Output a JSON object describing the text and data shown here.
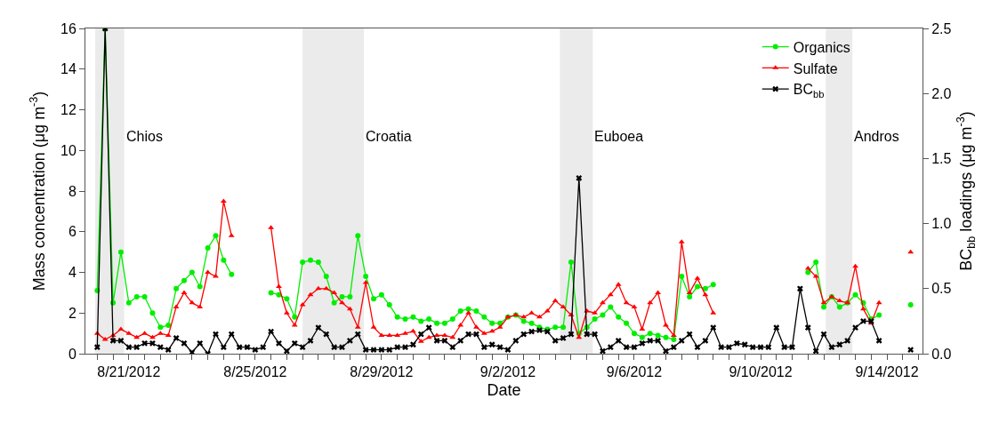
{
  "chart_data": {
    "type": "line",
    "xlabel": "Date",
    "ylabel": "Mass concentration (μg m$^{-3}$)",
    "y2label": "BC$_{bb}$ loadings (μg m$^{-3}$)",
    "x": [
      "2012-08-20T00:00",
      "2012-08-20T06:00",
      "2012-08-20T12:00",
      "2012-08-20T18:00",
      "2012-08-21T00:00",
      "2012-08-21T06:00",
      "2012-08-21T12:00",
      "2012-08-21T18:00",
      "2012-08-22T00:00",
      "2012-08-22T06:00",
      "2012-08-22T12:00",
      "2012-08-22T18:00",
      "2012-08-23T00:00",
      "2012-08-23T06:00",
      "2012-08-23T12:00",
      "2012-08-23T18:00",
      "2012-08-24T00:00",
      "2012-08-24T06:00",
      "2012-08-24T12:00",
      "2012-08-24T18:00",
      "2012-08-25T00:00",
      "2012-08-25T06:00",
      "2012-08-25T12:00",
      "2012-08-25T18:00",
      "2012-08-26T00:00",
      "2012-08-26T06:00",
      "2012-08-26T12:00",
      "2012-08-26T18:00",
      "2012-08-27T00:00",
      "2012-08-27T06:00",
      "2012-08-27T12:00",
      "2012-08-27T18:00",
      "2012-08-28T00:00",
      "2012-08-28T06:00",
      "2012-08-28T12:00",
      "2012-08-28T18:00",
      "2012-08-29T00:00",
      "2012-08-29T06:00",
      "2012-08-29T12:00",
      "2012-08-29T18:00",
      "2012-08-30T00:00",
      "2012-08-30T06:00",
      "2012-08-30T12:00",
      "2012-08-30T18:00",
      "2012-08-31T00:00",
      "2012-08-31T06:00",
      "2012-08-31T12:00",
      "2012-08-31T18:00",
      "2012-09-01T00:00",
      "2012-09-01T06:00",
      "2012-09-01T12:00",
      "2012-09-01T18:00",
      "2012-09-02T00:00",
      "2012-09-02T06:00",
      "2012-09-02T12:00",
      "2012-09-02T18:00",
      "2012-09-03T00:00",
      "2012-09-03T06:00",
      "2012-09-03T12:00",
      "2012-09-03T18:00",
      "2012-09-04T00:00",
      "2012-09-04T06:00",
      "2012-09-04T12:00",
      "2012-09-04T18:00",
      "2012-09-05T00:00",
      "2012-09-05T06:00",
      "2012-09-05T12:00",
      "2012-09-05T18:00",
      "2012-09-06T00:00",
      "2012-09-06T06:00",
      "2012-09-06T12:00",
      "2012-09-06T18:00",
      "2012-09-07T00:00",
      "2012-09-07T06:00",
      "2012-09-07T12:00",
      "2012-09-07T18:00",
      "2012-09-08T00:00",
      "2012-09-08T06:00",
      "2012-09-08T12:00",
      "2012-09-08T18:00",
      "2012-09-09T00:00",
      "2012-09-09T06:00",
      "2012-09-09T12:00",
      "2012-09-09T18:00",
      "2012-09-10T00:00",
      "2012-09-10T06:00",
      "2012-09-10T12:00",
      "2012-09-10T18:00",
      "2012-09-11T00:00",
      "2012-09-11T06:00",
      "2012-09-11T12:00",
      "2012-09-11T18:00",
      "2012-09-12T00:00",
      "2012-09-12T06:00",
      "2012-09-12T12:00",
      "2012-09-12T18:00",
      "2012-09-13T00:00",
      "2012-09-13T06:00",
      "2012-09-13T12:00",
      "2012-09-13T18:00",
      "2012-09-14T00:00",
      "2012-09-14T06:00",
      "2012-09-14T12:00",
      "2012-09-14T18:00"
    ],
    "series": [
      {
        "name": "Organics",
        "color": "#00ee00",
        "marker": "circle",
        "values": [
          3.1,
          16,
          2.5,
          5.0,
          2.5,
          2.8,
          2.8,
          2.0,
          1.3,
          1.4,
          3.2,
          3.6,
          4.0,
          3.3,
          5.2,
          5.8,
          4.6,
          3.9,
          null,
          null,
          null,
          null,
          3.0,
          2.9,
          2.7,
          1.8,
          4.5,
          4.6,
          4.5,
          3.8,
          2.5,
          2.8,
          2.8,
          5.8,
          3.8,
          2.7,
          2.9,
          2.4,
          1.8,
          1.7,
          1.8,
          1.6,
          1.7,
          1.5,
          1.5,
          1.7,
          2.1,
          2.2,
          2.1,
          1.8,
          1.5,
          1.5,
          1.8,
          1.9,
          1.6,
          1.5,
          1.3,
          1.2,
          1.3,
          1.3,
          4.5,
          1.0,
          1.3,
          1.7,
          1.9,
          2.3,
          1.8,
          1.5,
          1.0,
          0.8,
          1.0,
          0.9,
          0.8,
          0.7,
          3.8,
          2.8,
          3.3,
          3.2,
          3.4,
          null,
          null,
          null,
          null,
          null,
          null,
          null,
          null,
          null,
          null,
          null,
          4.0,
          4.5,
          2.3,
          2.8,
          2.3,
          2.5,
          2.9,
          2.5,
          1.7,
          1.9,
          null,
          null,
          null,
          2.4
        ]
      },
      {
        "name": "Sulfate",
        "color": "#ff0000",
        "marker": "triangle",
        "values": [
          1.0,
          0.7,
          0.9,
          1.2,
          1.0,
          0.8,
          1.0,
          0.8,
          1.0,
          0.9,
          2.3,
          3.0,
          2.5,
          2.3,
          4.0,
          3.8,
          7.5,
          5.8,
          null,
          null,
          null,
          null,
          6.2,
          3.3,
          2.0,
          1.4,
          2.4,
          2.9,
          3.2,
          3.2,
          3.0,
          2.5,
          2.2,
          1.3,
          3.5,
          1.3,
          0.9,
          0.9,
          0.9,
          1.0,
          1.1,
          0.6,
          0.8,
          0.9,
          0.9,
          0.8,
          1.4,
          2.0,
          1.3,
          1.0,
          1.1,
          1.3,
          1.8,
          1.9,
          1.8,
          2.0,
          1.8,
          2.1,
          2.6,
          2.3,
          1.9,
          0.8,
          2.1,
          2.0,
          2.5,
          2.9,
          3.4,
          2.5,
          2.3,
          1.2,
          2.5,
          3.0,
          1.4,
          0.9,
          5.5,
          3.0,
          3.7,
          2.9,
          2.0,
          null,
          null,
          null,
          null,
          null,
          null,
          null,
          null,
          null,
          null,
          null,
          4.2,
          3.8,
          2.5,
          2.8,
          2.6,
          2.5,
          4.3,
          2.2,
          1.5,
          2.5,
          null,
          null,
          null,
          5.0
        ]
      },
      {
        "name": "BC$_{bb}$",
        "color": "#000000",
        "marker": "cross",
        "axis": "y2",
        "values": [
          0.05,
          2.5,
          0.1,
          0.1,
          0.05,
          0.05,
          0.08,
          0.08,
          0.05,
          0.03,
          0.12,
          0.08,
          0.01,
          0.08,
          0.0,
          0.15,
          0.05,
          0.15,
          0.05,
          0.05,
          0.03,
          0.05,
          0.17,
          0.08,
          0.02,
          0.08,
          0.05,
          0.1,
          0.2,
          0.15,
          0.05,
          0.05,
          0.1,
          0.15,
          0.03,
          0.03,
          0.03,
          0.03,
          0.05,
          0.05,
          0.07,
          0.15,
          0.2,
          0.1,
          0.1,
          0.05,
          0.1,
          0.15,
          0.15,
          0.05,
          0.07,
          0.05,
          0.03,
          0.1,
          0.15,
          0.17,
          0.18,
          0.17,
          0.1,
          0.12,
          0.15,
          1.35,
          0.15,
          0.15,
          0.02,
          0.05,
          0.1,
          0.05,
          0.05,
          0.08,
          0.1,
          0.1,
          0.02,
          0.05,
          0.1,
          0.15,
          0.05,
          0.1,
          0.2,
          0.05,
          0.05,
          0.08,
          0.07,
          0.05,
          0.05,
          0.05,
          0.2,
          0.05,
          0.05,
          0.5,
          0.2,
          0.02,
          0.15,
          0.05,
          0.07,
          0.1,
          0.2,
          0.25,
          0.25,
          0.1,
          null,
          null,
          null,
          0.03
        ]
      }
    ],
    "xlim": [
      "2012-08-19T15:00",
      "2012-09-15T03:00"
    ],
    "xticks": [
      {
        "value": "2012-08-20T00:00",
        "label": null
      },
      {
        "value": "2012-08-20T12:00",
        "label": null
      },
      {
        "value": "2012-08-21T00:00",
        "label": "8/21/2012"
      },
      {
        "value": "2012-08-21T12:00",
        "label": null
      },
      {
        "value": "2012-08-22T00:00",
        "label": null
      },
      {
        "value": "2012-08-22T12:00",
        "label": null
      },
      {
        "value": "2012-08-23T00:00",
        "label": null
      },
      {
        "value": "2012-08-23T12:00",
        "label": null
      },
      {
        "value": "2012-08-24T00:00",
        "label": null
      },
      {
        "value": "2012-08-24T12:00",
        "label": null
      },
      {
        "value": "2012-08-25T00:00",
        "label": "8/25/2012"
      },
      {
        "value": "2012-08-25T12:00",
        "label": null
      },
      {
        "value": "2012-08-26T00:00",
        "label": null
      },
      {
        "value": "2012-08-26T12:00",
        "label": null
      },
      {
        "value": "2012-08-27T00:00",
        "label": null
      },
      {
        "value": "2012-08-27T12:00",
        "label": null
      },
      {
        "value": "2012-08-28T00:00",
        "label": null
      },
      {
        "value": "2012-08-28T12:00",
        "label": null
      },
      {
        "value": "2012-08-29T00:00",
        "label": "8/29/2012"
      },
      {
        "value": "2012-08-29T12:00",
        "label": null
      },
      {
        "value": "2012-08-30T00:00",
        "label": null
      },
      {
        "value": "2012-08-30T12:00",
        "label": null
      },
      {
        "value": "2012-08-31T00:00",
        "label": null
      },
      {
        "value": "2012-08-31T12:00",
        "label": null
      },
      {
        "value": "2012-09-01T00:00",
        "label": null
      },
      {
        "value": "2012-09-01T12:00",
        "label": null
      },
      {
        "value": "2012-09-02T00:00",
        "label": "9/2/2012"
      },
      {
        "value": "2012-09-02T12:00",
        "label": null
      },
      {
        "value": "2012-09-03T00:00",
        "label": null
      },
      {
        "value": "2012-09-03T12:00",
        "label": null
      },
      {
        "value": "2012-09-04T00:00",
        "label": null
      },
      {
        "value": "2012-09-04T12:00",
        "label": null
      },
      {
        "value": "2012-09-05T00:00",
        "label": null
      },
      {
        "value": "2012-09-05T12:00",
        "label": null
      },
      {
        "value": "2012-09-06T00:00",
        "label": "9/6/2012"
      },
      {
        "value": "2012-09-06T12:00",
        "label": null
      },
      {
        "value": "2012-09-07T00:00",
        "label": null
      },
      {
        "value": "2012-09-07T12:00",
        "label": null
      },
      {
        "value": "2012-09-08T00:00",
        "label": null
      },
      {
        "value": "2012-09-08T12:00",
        "label": null
      },
      {
        "value": "2012-09-09T00:00",
        "label": null
      },
      {
        "value": "2012-09-09T12:00",
        "label": null
      },
      {
        "value": "2012-09-10T00:00",
        "label": "9/10/2012"
      },
      {
        "value": "2012-09-10T12:00",
        "label": null
      },
      {
        "value": "2012-09-11T00:00",
        "label": null
      },
      {
        "value": "2012-09-11T12:00",
        "label": null
      },
      {
        "value": "2012-09-12T00:00",
        "label": null
      },
      {
        "value": "2012-09-12T12:00",
        "label": null
      },
      {
        "value": "2012-09-13T00:00",
        "label": null
      },
      {
        "value": "2012-09-13T12:00",
        "label": null
      },
      {
        "value": "2012-09-14T00:00",
        "label": "9/14/2012"
      },
      {
        "value": "2012-09-14T12:00",
        "label": null
      },
      {
        "value": "2012-09-15T00:00",
        "label": null
      }
    ],
    "ylim": [
      0,
      16
    ],
    "yticks": [
      0,
      2,
      4,
      6,
      8,
      10,
      12,
      14,
      16
    ],
    "y2lim": [
      0,
      2.5
    ],
    "y2ticks": [
      {
        "value": 0,
        "label": "0.0"
      },
      {
        "value": 0.5,
        "label": "0.5"
      },
      {
        "value": 1,
        "label": "1.0"
      },
      {
        "value": 1.5,
        "label": "1.5"
      },
      {
        "value": 2,
        "label": "2.0"
      },
      {
        "value": 2.5,
        "label": "2.5"
      }
    ],
    "bands": [
      {
        "axis": "x",
        "from": "2012-08-19T22:30",
        "to": "2012-08-20T20:30",
        "color": "#ebebeb"
      },
      {
        "axis": "x",
        "from": "2012-08-26T12:00",
        "to": "2012-08-28T10:30",
        "color": "#ebebeb"
      },
      {
        "axis": "x",
        "from": "2012-09-03T15:30",
        "to": "2012-09-04T16:30",
        "color": "#ebebeb"
      },
      {
        "axis": "x",
        "from": "2012-09-12T01:30",
        "to": "2012-09-12T21:45",
        "color": "#ebebeb"
      }
    ],
    "annotations": [
      "Chios",
      "Croatia",
      "Euboea",
      "Andros"
    ],
    "grid": false,
    "legend": "top right",
    "line_style": "solid"
  }
}
